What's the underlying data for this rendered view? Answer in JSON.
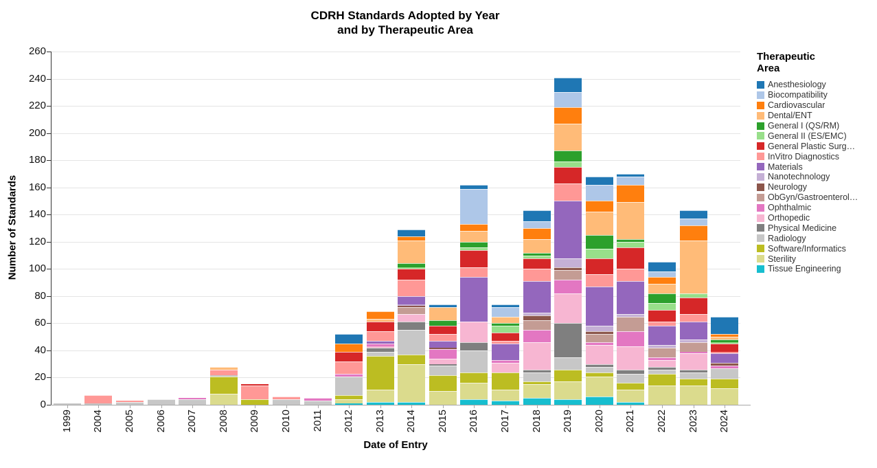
{
  "chart_data": {
    "type": "bar",
    "stacked": true,
    "title_line1": "CDRH Standards Adopted by Year",
    "title_line2": "and by Therapeutic Area",
    "xlabel": "Date of Entry",
    "ylabel": "Number of Standards",
    "ylim": [
      0,
      260
    ],
    "ytick_step": 20,
    "grid": true,
    "legend_position": "right",
    "legend_title_line1": "Therapeutic",
    "legend_title_line2": "Area",
    "categories": [
      "1999",
      "2004",
      "2005",
      "2006",
      "2007",
      "2008",
      "2009",
      "2010",
      "2011",
      "2012",
      "2013",
      "2014",
      "2015",
      "2016",
      "2017",
      "2018",
      "2019",
      "2020",
      "2021",
      "2022",
      "2023",
      "2024"
    ],
    "series": [
      {
        "name": "Anesthesiology",
        "color": "#1f77b4",
        "values": [
          0,
          0,
          0,
          0,
          0,
          0,
          0,
          0,
          0,
          7,
          0,
          5,
          2,
          3,
          2,
          8,
          11,
          6,
          2,
          7,
          6,
          13
        ]
      },
      {
        "name": "Biocompatibility",
        "color": "#aec7e8",
        "values": [
          0,
          0,
          0,
          0,
          0,
          0,
          0,
          0,
          0,
          0,
          0,
          0,
          0,
          26,
          7,
          5,
          11,
          12,
          6,
          4,
          5,
          0
        ]
      },
      {
        "name": "Cardiovascular",
        "color": "#ff7f0e",
        "values": [
          0,
          0,
          0,
          0,
          0,
          0,
          0,
          0,
          0,
          6,
          6,
          3,
          0,
          5,
          0,
          8,
          12,
          8,
          13,
          5,
          11,
          2
        ]
      },
      {
        "name": "Dental/ENT",
        "color": "#ffbb78",
        "values": [
          0,
          0,
          0,
          0,
          0,
          2,
          0,
          0,
          0,
          0,
          2,
          17,
          10,
          8,
          5,
          10,
          20,
          17,
          27,
          7,
          39,
          2
        ]
      },
      {
        "name": "General I (QS/RM)",
        "color": "#2ca02c",
        "values": [
          0,
          0,
          0,
          0,
          0,
          0,
          0,
          0,
          0,
          0,
          0,
          3,
          4,
          4,
          2,
          2,
          8,
          10,
          2,
          7,
          0,
          2
        ]
      },
      {
        "name": "General II (ES/EMC)",
        "color": "#98df8a",
        "values": [
          0,
          0,
          0,
          0,
          0,
          0,
          0,
          0,
          0,
          0,
          0,
          1,
          0,
          2,
          5,
          2,
          4,
          7,
          4,
          5,
          3,
          1
        ]
      },
      {
        "name": "General Plastic Surg…",
        "color": "#d62728",
        "values": [
          0,
          0,
          0,
          0,
          0,
          0,
          1,
          0,
          0,
          7,
          7,
          8,
          6,
          13,
          6,
          8,
          12,
          12,
          16,
          9,
          12,
          6
        ]
      },
      {
        "name": "InVitro Diagnostics",
        "color": "#ff9896",
        "values": [
          0,
          6,
          1,
          0,
          0,
          4,
          10,
          2,
          0,
          9,
          7,
          12,
          5,
          7,
          2,
          9,
          13,
          9,
          9,
          3,
          6,
          1
        ]
      },
      {
        "name": "Materials",
        "color": "#9467bd",
        "values": [
          0,
          0,
          0,
          0,
          0,
          0,
          0,
          0,
          0,
          0,
          2,
          6,
          5,
          33,
          12,
          23,
          42,
          29,
          24,
          14,
          13,
          7
        ]
      },
      {
        "name": "Nanotechnology",
        "color": "#c5b0d5",
        "values": [
          0,
          0,
          0,
          0,
          0,
          0,
          0,
          0,
          0,
          0,
          0,
          1,
          0,
          0,
          0,
          2,
          7,
          4,
          2,
          2,
          2,
          0
        ]
      },
      {
        "name": "Neurology",
        "color": "#8c564b",
        "values": [
          0,
          0,
          0,
          0,
          0,
          0,
          0,
          0,
          0,
          0,
          0,
          1,
          1,
          0,
          0,
          4,
          2,
          2,
          0,
          0,
          0,
          2
        ]
      },
      {
        "name": "ObGyn/Gastroenterol…",
        "color": "#c49c94",
        "values": [
          0,
          0,
          0,
          0,
          0,
          0,
          0,
          0,
          0,
          0,
          0,
          5,
          0,
          0,
          0,
          7,
          7,
          6,
          11,
          7,
          7,
          0
        ]
      },
      {
        "name": "Ophthalmic",
        "color": "#e377c2",
        "values": [
          0,
          0,
          0,
          0,
          1,
          0,
          0,
          0,
          2,
          2,
          2,
          0,
          7,
          0,
          2,
          9,
          10,
          2,
          11,
          2,
          1,
          2
        ]
      },
      {
        "name": "Orthopedic",
        "color": "#f7b6d2",
        "values": [
          0,
          0,
          0,
          0,
          0,
          0,
          0,
          0,
          0,
          0,
          1,
          6,
          4,
          15,
          7,
          20,
          22,
          14,
          17,
          5,
          12,
          0
        ]
      },
      {
        "name": "Physical Medicine",
        "color": "#7f7f7f",
        "values": [
          0,
          0,
          0,
          0,
          0,
          0,
          0,
          0,
          0,
          0,
          3,
          6,
          1,
          6,
          0,
          2,
          25,
          2,
          3,
          2,
          2,
          0
        ]
      },
      {
        "name": "Radiology",
        "color": "#c7c7c7",
        "values": [
          1,
          1,
          2,
          4,
          4,
          1,
          0,
          4,
          3,
          14,
          3,
          18,
          7,
          16,
          0,
          7,
          9,
          4,
          7,
          3,
          5,
          8
        ]
      },
      {
        "name": "Software/Informatics",
        "color": "#bcbd22",
        "values": [
          0,
          0,
          0,
          0,
          0,
          13,
          4,
          0,
          0,
          3,
          25,
          7,
          12,
          8,
          13,
          2,
          9,
          3,
          5,
          9,
          5,
          7
        ]
      },
      {
        "name": "Sterility",
        "color": "#dbdb8d",
        "values": [
          0,
          0,
          0,
          0,
          0,
          8,
          0,
          0,
          0,
          3,
          9,
          28,
          10,
          12,
          8,
          10,
          13,
          15,
          9,
          14,
          14,
          12
        ]
      },
      {
        "name": "Tissue Engineering",
        "color": "#17becf",
        "values": [
          0,
          0,
          0,
          0,
          0,
          0,
          0,
          0,
          0,
          1,
          2,
          2,
          0,
          4,
          3,
          5,
          4,
          6,
          2,
          0,
          0,
          0
        ]
      }
    ]
  }
}
